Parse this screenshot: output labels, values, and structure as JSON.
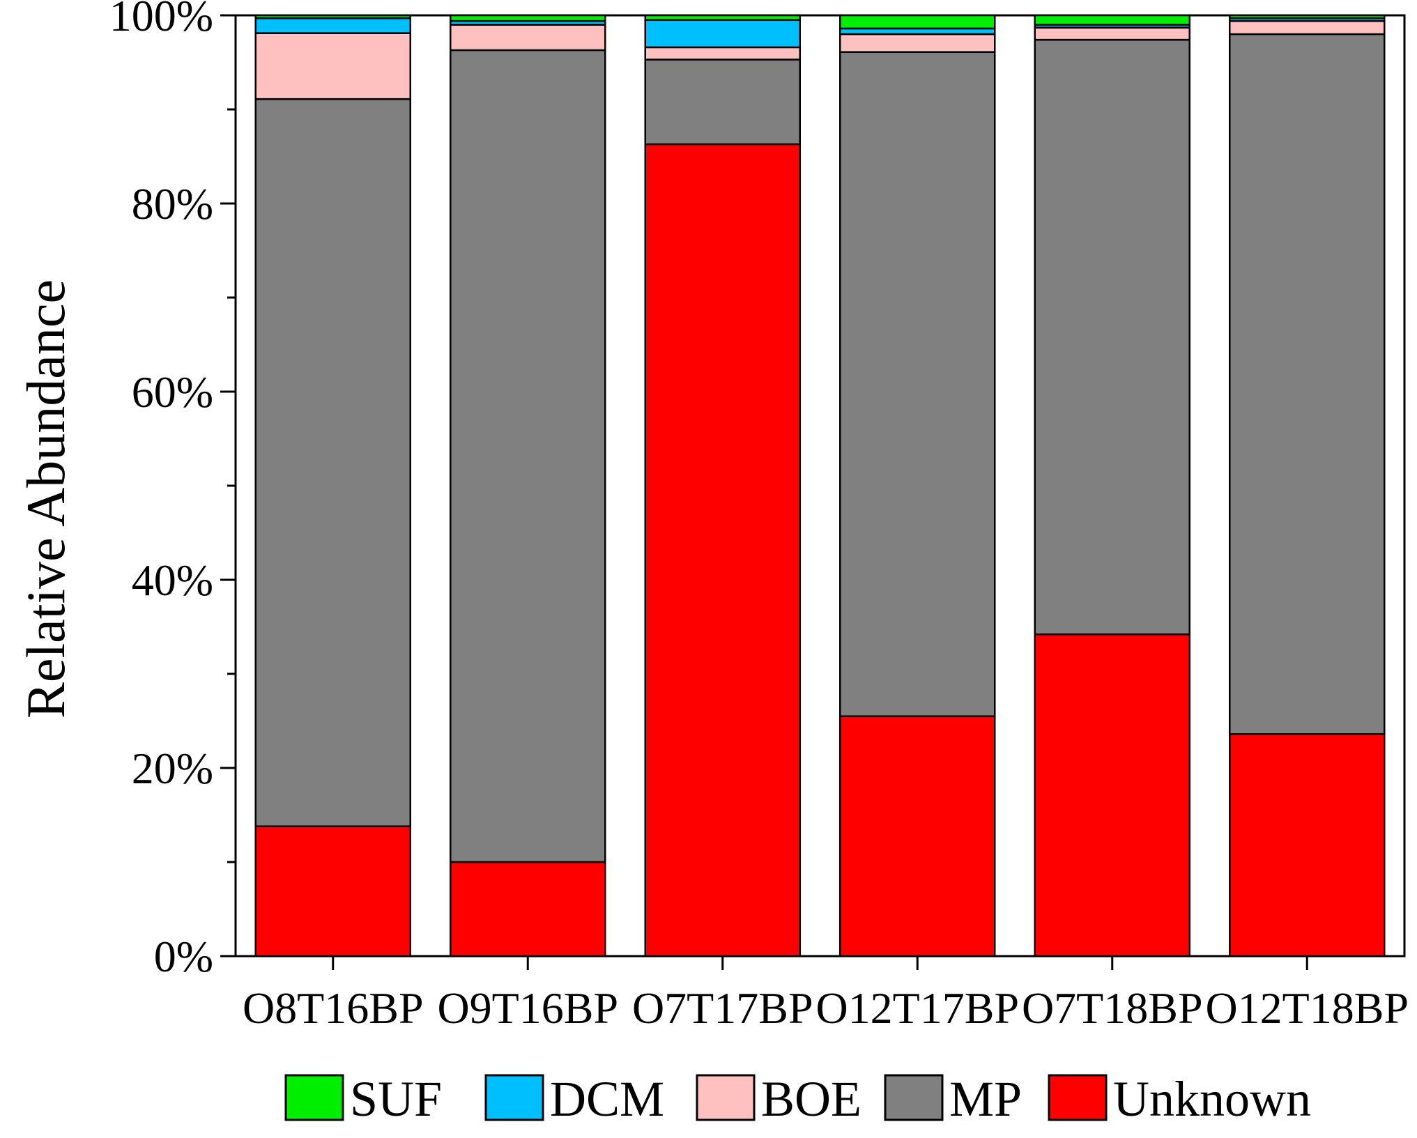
{
  "chart_data": {
    "type": "bar",
    "stacked": true,
    "title": "",
    "xlabel": "",
    "ylabel": "Relative Abundance",
    "ylim": [
      0,
      100
    ],
    "yticks": [
      "0%",
      "20%",
      "40%",
      "60%",
      "80%",
      "100%"
    ],
    "categories": [
      "O8T16BP",
      "O9T16BP",
      "O7T17BP",
      "O12T17BP",
      "O7T18BP",
      "O12T18BP"
    ],
    "series": [
      {
        "name": "Unknown",
        "color": "#ff0000",
        "values": [
          13.8,
          10.0,
          86.3,
          25.5,
          34.2,
          23.6
        ]
      },
      {
        "name": "MP",
        "color": "#808080",
        "values": [
          77.3,
          86.3,
          9.0,
          70.6,
          63.2,
          74.4
        ]
      },
      {
        "name": "BOE",
        "color": "#ffc0c0",
        "values": [
          7.0,
          2.7,
          1.3,
          1.9,
          1.3,
          1.4
        ]
      },
      {
        "name": "DCM",
        "color": "#00bfff",
        "values": [
          1.6,
          0.4,
          2.9,
          0.6,
          0.3,
          0.3
        ]
      },
      {
        "name": "SUF",
        "color": "#00ee00",
        "values": [
          0.3,
          0.6,
          0.5,
          1.4,
          1.0,
          0.3
        ]
      }
    ],
    "legend_order": [
      "SUF",
      "DCM",
      "BOE",
      "MP",
      "Unknown"
    ],
    "legend_position": "bottom",
    "grid": false
  }
}
